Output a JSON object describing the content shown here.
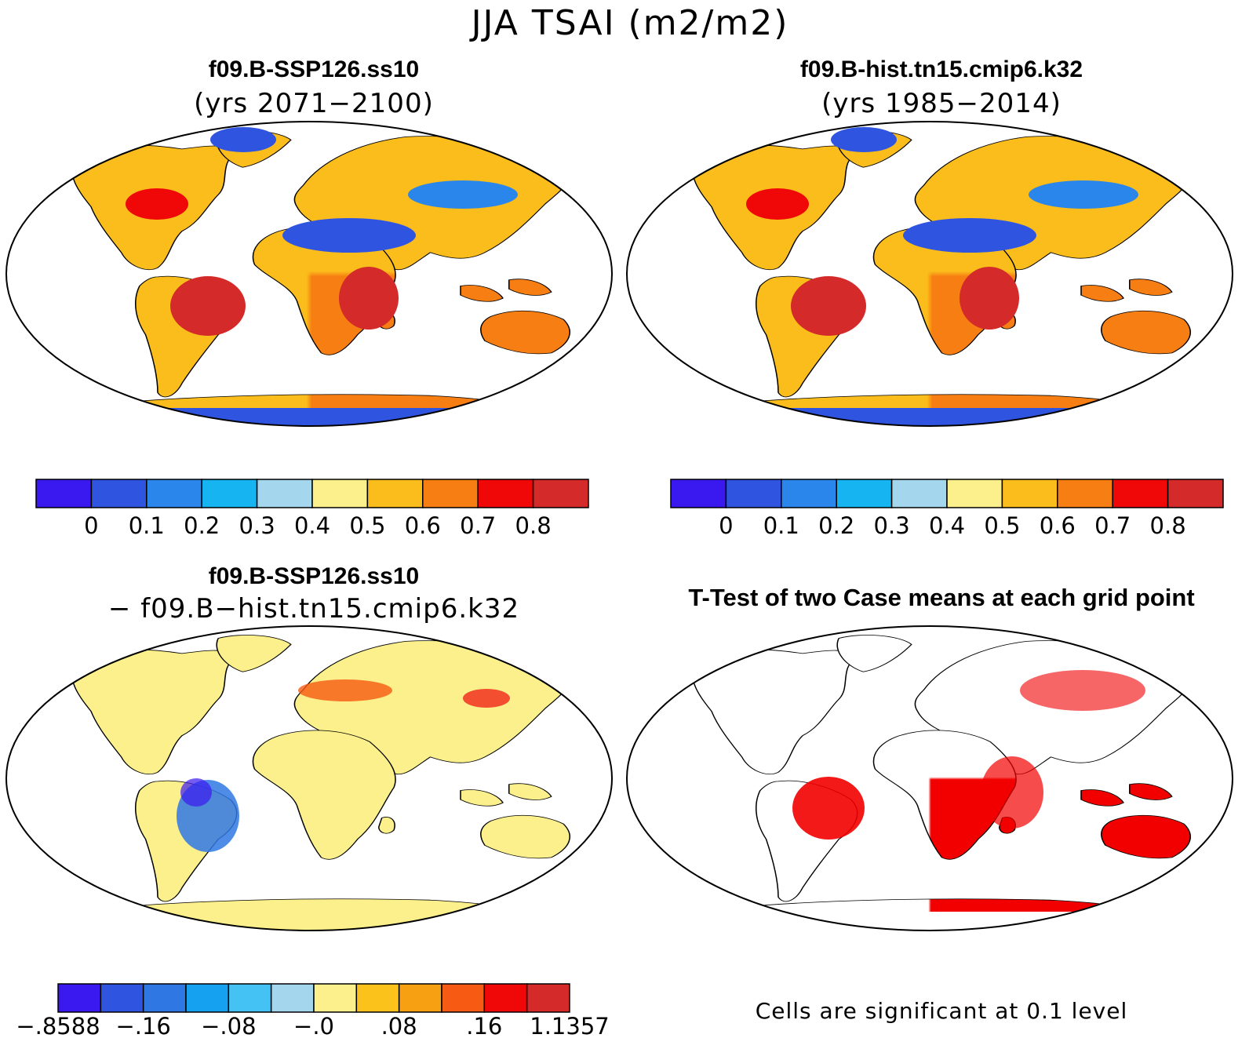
{
  "figure": {
    "title": "JJA TSAI (m2/m2)"
  },
  "panels": {
    "top_left": {
      "title": "f09.B-SSP126.ss10",
      "subtitle": "(yrs 2071−2100)"
    },
    "top_right": {
      "title": "f09.B-hist.tn15.cmip6.k32",
      "subtitle": "(yrs 1985−2014)"
    },
    "bottom_left": {
      "title": "f09.B-SSP126.ss10",
      "subtitle": "− f09.B−hist.tn15.cmip6.k32"
    },
    "bottom_right": {
      "title": "T-Test of two Case means at each grid point",
      "note": "Cells are significant at 0.1 level",
      "significant_color": "#f20000"
    }
  },
  "colorbars": {
    "abs": {
      "colors": [
        "#3a18f0",
        "#2f55e0",
        "#2a86ea",
        "#16b4f0",
        "#a4d6ee",
        "#fbf08c",
        "#fbbd1c",
        "#f77e12",
        "#f00808",
        "#d42a2a"
      ],
      "labels": [
        "0",
        "0.1",
        "0.2",
        "0.3",
        "0.4",
        "0.5",
        "0.6",
        "0.7",
        "0.8"
      ]
    },
    "diff": {
      "colors": [
        "#3a18f0",
        "#2f55e0",
        "#2f78e4",
        "#16a0f0",
        "#44c2f4",
        "#a4d6ee",
        "#fbf08c",
        "#fbc21c",
        "#f7a012",
        "#f75a12",
        "#f00808",
        "#d42a2a"
      ],
      "labels": [
        "−.8588",
        "−.16",
        "−.08",
        "−.0",
        ".08",
        ".16",
        "1.1357"
      ]
    }
  }
}
